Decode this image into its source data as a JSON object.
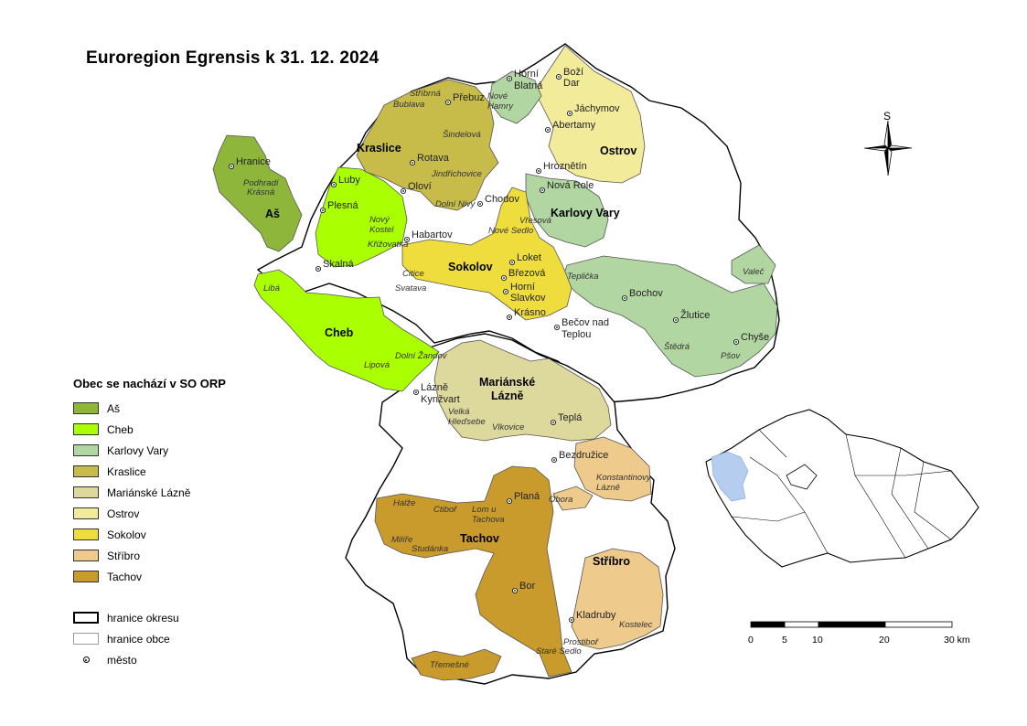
{
  "title": "Euroregion Egrensis k 31. 12. 2024",
  "north_label": "S",
  "legend": {
    "heading": "Obec se nachází v SO ORP",
    "items": [
      {
        "label": "Aš",
        "color": "#8db63a"
      },
      {
        "label": "Cheb",
        "color": "#aaff00"
      },
      {
        "label": "Karlovy Vary",
        "color": "#b2d6a2"
      },
      {
        "label": "Kraslice",
        "color": "#c7bc4a"
      },
      {
        "label": "Mariánské Lázně",
        "color": "#ddd99c"
      },
      {
        "label": "Ostrov",
        "color": "#f2eb9a"
      },
      {
        "label": "Sokolov",
        "color": "#eedd3c"
      },
      {
        "label": "Stříbro",
        "color": "#eecb8c"
      },
      {
        "label": "Tachov",
        "color": "#c99a2c"
      }
    ],
    "boundary_okres": "hranice okresu",
    "boundary_obec": "hranice obce",
    "town": "město"
  },
  "scale": {
    "ticks": [
      "0",
      "5",
      "10",
      "20",
      "30 km"
    ]
  },
  "orp_labels": [
    "Aš",
    "Cheb",
    "Kraslice",
    "Sokolov",
    "Karlovy Vary",
    "Ostrov",
    "Mariánské Lázně",
    "Tachov",
    "Stříbro"
  ],
  "town_labels": [
    "Hranice",
    "Podhradí",
    "Krásná",
    "Luby",
    "Plesná",
    "Nový Kostel",
    "Křižovatka",
    "Skalná",
    "Libá",
    "Dolní Žandov",
    "Lipová",
    "Stříbrná",
    "Bublava",
    "Přebuz",
    "Šindelová",
    "Rotava",
    "Jindřichovice",
    "Oloví",
    "Dolní Nivy",
    "Nové Hamry",
    "Horní Blatná",
    "Boží Dar",
    "Jáchymov",
    "Abertamy",
    "Hroznětín",
    "Chodov",
    "Nová Role",
    "Habartov",
    "Vřesová",
    "Nové Sedlo",
    "Loket",
    "Citice",
    "Svatava",
    "Březová",
    "Horní Slavkov",
    "Krásno",
    "Teplička",
    "Bečov nad Teplou",
    "Bochov",
    "Žlutice",
    "Valeč",
    "Chyše",
    "Štědrá",
    "Pšov",
    "Lázně Kynžvart",
    "Velká Hleďsebe",
    "Vlkovice",
    "Teplá",
    "Bezdružice",
    "Konstantinovy Lázně",
    "Planá",
    "Obora",
    "Halže",
    "Ctiboř",
    "Lom u Tachova",
    "Milíře",
    "Studánka",
    "Bor",
    "Třemešné",
    "Kladruby",
    "Kostelec",
    "Staré Sedlo",
    "Prostiboř"
  ]
}
